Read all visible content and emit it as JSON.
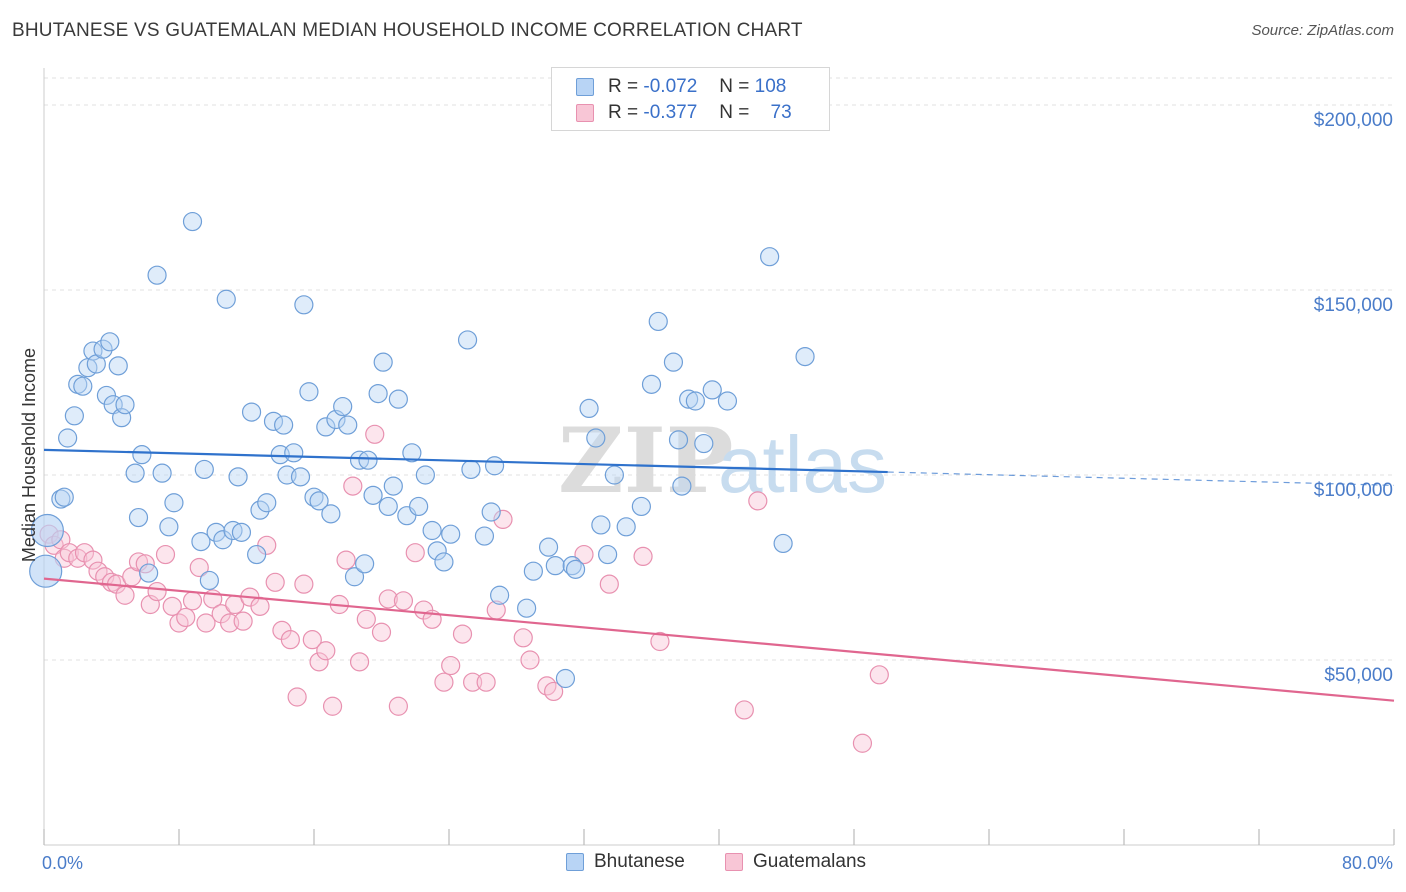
{
  "title": "BHUTANESE VS GUATEMALAN MEDIAN HOUSEHOLD INCOME CORRELATION CHART",
  "source": "Source: ZipAtlas.com",
  "watermark": {
    "zip": "ZIP",
    "atlas": "atlas"
  },
  "legend": {
    "rows": [
      {
        "r_label": "R =",
        "r_value": "-0.072",
        "n_label": "N =",
        "n_value": "108"
      },
      {
        "r_label": "R =",
        "r_value": "-0.377",
        "n_label": "N =",
        "n_value": "73"
      }
    ]
  },
  "bottom_legend": [
    "Bhutanese",
    "Guatemalans"
  ],
  "colors": {
    "blue_fill": "#b8d4f5",
    "blue_stroke": "#6f9fd8",
    "blue_line": "#2f72cc",
    "pink_fill": "#f8c6d6",
    "pink_stroke": "#e891b0",
    "pink_line": "#e0668f",
    "tick_text": "#4a7cc9",
    "grid": "#e2e2e2"
  },
  "chart_data": {
    "type": "scatter",
    "title": "BHUTANESE VS GUATEMALAN MEDIAN HOUSEHOLD INCOME CORRELATION CHART",
    "xlabel": "",
    "ylabel": "Median Household Income",
    "x_unit": "%",
    "xlim": [
      0,
      80
    ],
    "ylim": [
      0,
      210000
    ],
    "x_tick_labels": [
      "0.0%",
      "80.0%"
    ],
    "y_ticks": [
      50000,
      100000,
      150000,
      200000
    ],
    "y_tick_labels": [
      "$50,000",
      "$100,000",
      "$150,000",
      "$200,000"
    ],
    "grid": "horizontal dashed",
    "legend_position": "top-center",
    "series": [
      {
        "name": "Bhutanese",
        "r": -0.072,
        "n": 108,
        "trend": {
          "x0": 0,
          "y0": 106800,
          "x1": 50,
          "y1": 100800,
          "dashed_to_x": 80,
          "dashed_to_y": 97200
        },
        "points": [
          [
            0.1,
            74000
          ],
          [
            0.2,
            85000
          ],
          [
            1.0,
            93500
          ],
          [
            1.2,
            94000
          ],
          [
            1.4,
            110000
          ],
          [
            1.8,
            116000
          ],
          [
            2.0,
            124500
          ],
          [
            2.3,
            124000
          ],
          [
            2.6,
            129000
          ],
          [
            2.9,
            133500
          ],
          [
            3.1,
            130000
          ],
          [
            3.5,
            134000
          ],
          [
            3.7,
            121500
          ],
          [
            3.9,
            136000
          ],
          [
            4.1,
            119000
          ],
          [
            4.4,
            129500
          ],
          [
            4.6,
            115500
          ],
          [
            4.8,
            119000
          ],
          [
            5.4,
            100500
          ],
          [
            5.6,
            88500
          ],
          [
            5.8,
            105500
          ],
          [
            6.2,
            73500
          ],
          [
            6.7,
            154000
          ],
          [
            7.0,
            100500
          ],
          [
            7.4,
            86000
          ],
          [
            7.7,
            92500
          ],
          [
            8.8,
            168500
          ],
          [
            9.3,
            82000
          ],
          [
            9.5,
            101500
          ],
          [
            9.8,
            71500
          ],
          [
            10.2,
            84500
          ],
          [
            10.6,
            82500
          ],
          [
            10.8,
            147500
          ],
          [
            11.2,
            85000
          ],
          [
            11.5,
            99500
          ],
          [
            11.7,
            84500
          ],
          [
            12.3,
            117000
          ],
          [
            12.6,
            78500
          ],
          [
            12.8,
            90500
          ],
          [
            13.2,
            92500
          ],
          [
            13.6,
            114500
          ],
          [
            14.0,
            105500
          ],
          [
            14.2,
            113500
          ],
          [
            14.4,
            100000
          ],
          [
            14.8,
            106000
          ],
          [
            15.2,
            99500
          ],
          [
            15.4,
            146000
          ],
          [
            15.7,
            122500
          ],
          [
            16.0,
            94000
          ],
          [
            16.3,
            93000
          ],
          [
            16.7,
            113000
          ],
          [
            17.0,
            89500
          ],
          [
            17.3,
            115000
          ],
          [
            17.7,
            118500
          ],
          [
            18.0,
            113500
          ],
          [
            18.4,
            72500
          ],
          [
            18.7,
            104000
          ],
          [
            19.0,
            76000
          ],
          [
            19.2,
            104000
          ],
          [
            19.5,
            94500
          ],
          [
            19.8,
            122000
          ],
          [
            20.1,
            130500
          ],
          [
            20.4,
            91500
          ],
          [
            20.7,
            97000
          ],
          [
            21.0,
            120500
          ],
          [
            21.5,
            89000
          ],
          [
            21.8,
            106000
          ],
          [
            22.2,
            91500
          ],
          [
            22.6,
            100000
          ],
          [
            23.0,
            85000
          ],
          [
            23.3,
            79500
          ],
          [
            23.7,
            76500
          ],
          [
            24.1,
            84000
          ],
          [
            25.1,
            136500
          ],
          [
            25.3,
            101500
          ],
          [
            26.1,
            83500
          ],
          [
            26.5,
            90000
          ],
          [
            26.7,
            102500
          ],
          [
            27.0,
            67500
          ],
          [
            28.6,
            64000
          ],
          [
            29.0,
            74000
          ],
          [
            29.9,
            80500
          ],
          [
            30.3,
            75500
          ],
          [
            30.9,
            45000
          ],
          [
            31.3,
            75500
          ],
          [
            31.5,
            74500
          ],
          [
            32.3,
            118000
          ],
          [
            32.7,
            110000
          ],
          [
            33.0,
            86500
          ],
          [
            33.4,
            78500
          ],
          [
            33.8,
            100000
          ],
          [
            34.5,
            86000
          ],
          [
            35.4,
            91500
          ],
          [
            36.0,
            124500
          ],
          [
            36.4,
            141500
          ],
          [
            37.3,
            130500
          ],
          [
            37.6,
            109500
          ],
          [
            37.8,
            97000
          ],
          [
            38.2,
            120500
          ],
          [
            38.6,
            120000
          ],
          [
            39.1,
            108500
          ],
          [
            39.6,
            123000
          ],
          [
            40.5,
            120000
          ],
          [
            43.0,
            159000
          ],
          [
            43.8,
            81500
          ],
          [
            45.1,
            132000
          ]
        ]
      },
      {
        "name": "Guatemalans",
        "r": -0.377,
        "n": 73,
        "trend": {
          "x0": 0,
          "y0": 72000,
          "x1": 80,
          "y1": 39000
        },
        "points": [
          [
            0.3,
            84000
          ],
          [
            0.6,
            81000
          ],
          [
            1.0,
            82500
          ],
          [
            1.2,
            77500
          ],
          [
            1.5,
            79000
          ],
          [
            2.0,
            77500
          ],
          [
            2.4,
            79000
          ],
          [
            2.9,
            77000
          ],
          [
            3.2,
            74000
          ],
          [
            3.6,
            72500
          ],
          [
            4.0,
            71000
          ],
          [
            4.3,
            70500
          ],
          [
            4.8,
            67500
          ],
          [
            5.2,
            72500
          ],
          [
            5.6,
            76500
          ],
          [
            6.0,
            76000
          ],
          [
            6.3,
            65000
          ],
          [
            6.7,
            68500
          ],
          [
            7.2,
            78500
          ],
          [
            7.6,
            64500
          ],
          [
            8.0,
            60000
          ],
          [
            8.4,
            61500
          ],
          [
            8.8,
            66000
          ],
          [
            9.2,
            75000
          ],
          [
            9.6,
            60000
          ],
          [
            10.0,
            66500
          ],
          [
            10.5,
            62500
          ],
          [
            11.0,
            60000
          ],
          [
            11.3,
            65000
          ],
          [
            11.8,
            60500
          ],
          [
            12.2,
            67000
          ],
          [
            12.8,
            64500
          ],
          [
            13.2,
            81000
          ],
          [
            13.7,
            71000
          ],
          [
            14.1,
            58000
          ],
          [
            14.6,
            55500
          ],
          [
            15.0,
            40000
          ],
          [
            15.4,
            70500
          ],
          [
            15.9,
            55500
          ],
          [
            16.3,
            49500
          ],
          [
            16.7,
            52500
          ],
          [
            17.1,
            37500
          ],
          [
            17.5,
            65000
          ],
          [
            17.9,
            77000
          ],
          [
            18.3,
            97000
          ],
          [
            18.7,
            49500
          ],
          [
            19.1,
            61000
          ],
          [
            19.6,
            111000
          ],
          [
            20.0,
            57500
          ],
          [
            20.4,
            66500
          ],
          [
            21.0,
            37500
          ],
          [
            21.3,
            66000
          ],
          [
            22.0,
            79000
          ],
          [
            22.5,
            63500
          ],
          [
            23.0,
            61000
          ],
          [
            23.7,
            44000
          ],
          [
            24.1,
            48500
          ],
          [
            24.8,
            57000
          ],
          [
            25.4,
            44000
          ],
          [
            26.2,
            44000
          ],
          [
            26.8,
            63500
          ],
          [
            27.2,
            88000
          ],
          [
            28.4,
            56000
          ],
          [
            28.8,
            50000
          ],
          [
            29.8,
            43000
          ],
          [
            30.2,
            41500
          ],
          [
            32.0,
            78500
          ],
          [
            33.5,
            70500
          ],
          [
            35.5,
            78000
          ],
          [
            36.5,
            55000
          ],
          [
            41.5,
            36500
          ],
          [
            42.3,
            93000
          ],
          [
            48.5,
            27500
          ],
          [
            49.5,
            46000
          ]
        ]
      }
    ]
  }
}
